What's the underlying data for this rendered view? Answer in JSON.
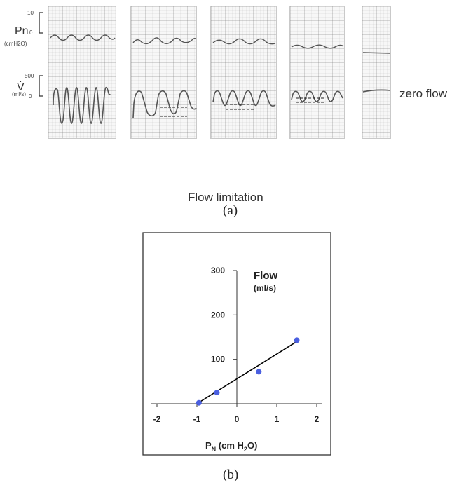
{
  "panel_a": {
    "pn_label": "Pn",
    "pn_unit": "(cmH2O)",
    "pn_ticks": [
      "10",
      "0"
    ],
    "flow_label": "V̇",
    "flow_unit": "(ml/s)",
    "flow_ticks": [
      "500",
      "0"
    ],
    "annotation_zero_flow": "zero flow",
    "annotation_flow_limitation": "Flow limitation",
    "caption": "(a)"
  },
  "panel_b": {
    "caption": "(b)"
  },
  "chart_data": {
    "type": "scatter",
    "title": "Flow",
    "title_unit": "(ml/s)",
    "xlabel_main": "P",
    "xlabel_sub": "N",
    "xlabel_unit_prefix": "(cm H",
    "xlabel_unit_sub": "2",
    "xlabel_unit_suffix": "O)",
    "xlim": [
      -2,
      2
    ],
    "ylim": [
      0,
      300
    ],
    "xticks": [
      "-2",
      "-1",
      "0",
      "1",
      "2"
    ],
    "yticks": [
      "100",
      "200",
      "300"
    ],
    "points": [
      {
        "x": -0.95,
        "y": 2
      },
      {
        "x": -0.5,
        "y": 25
      },
      {
        "x": 0.55,
        "y": 72
      },
      {
        "x": 1.5,
        "y": 143
      }
    ],
    "fit_line": [
      {
        "x": -1.0,
        "y": 0
      },
      {
        "x": 1.5,
        "y": 140
      }
    ],
    "point_color": "#4a5fe0",
    "line_color": "#000000"
  }
}
